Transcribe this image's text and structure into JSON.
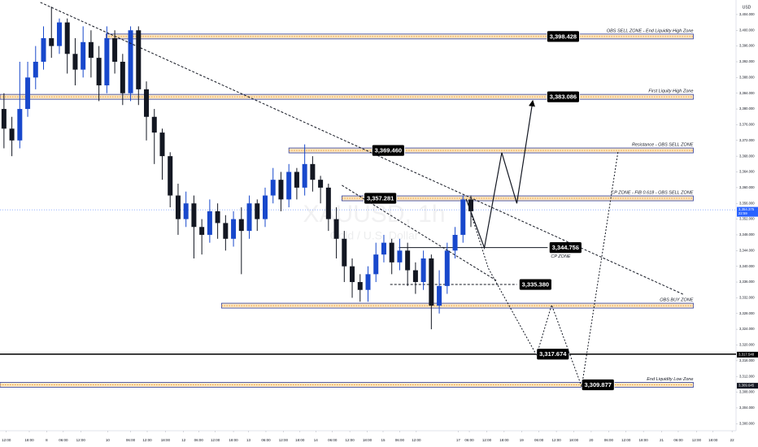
{
  "chart_data": {
    "type": "candlestick",
    "currency": "USD",
    "watermark": {
      "symbol": "XAUUSD, 1h",
      "description": "Gold / U.S. Dollar"
    },
    "up_color": "#1848cc",
    "down_color": "#131722",
    "grid": false,
    "xlim": [
      0,
      93
    ],
    "ylim": [
      3298.2,
      3407.7
    ],
    "yticks": [
      {
        "value": 3300,
        "label": "3,300.000"
      },
      {
        "value": 3304,
        "label": "3,304.000"
      },
      {
        "value": 3308,
        "label": "3,308.000"
      },
      {
        "value": 3312,
        "label": "3,312.000"
      },
      {
        "value": 3316,
        "label": "3,316.000"
      },
      {
        "value": 3320,
        "label": "3,320.000"
      },
      {
        "value": 3324,
        "label": "3,324.000"
      },
      {
        "value": 3328,
        "label": "3,328.000"
      },
      {
        "value": 3332,
        "label": "3,332.000"
      },
      {
        "value": 3336,
        "label": "3,336.000"
      },
      {
        "value": 3340,
        "label": "3,340.000"
      },
      {
        "value": 3344,
        "label": "3,344.000"
      },
      {
        "value": 3348,
        "label": "3,348.000"
      },
      {
        "value": 3352,
        "label": "3,352.000"
      },
      {
        "value": 3356,
        "label": "3,356.000"
      },
      {
        "value": 3360,
        "label": "3,360.000"
      },
      {
        "value": 3364,
        "label": "3,364.000"
      },
      {
        "value": 3368,
        "label": "3,368.000"
      },
      {
        "value": 3372,
        "label": "3,372.000"
      },
      {
        "value": 3376,
        "label": "3,376.000"
      },
      {
        "value": 3380,
        "label": "3,380.000"
      },
      {
        "value": 3384,
        "label": "3,384.000"
      },
      {
        "value": 3388,
        "label": "3,388.000"
      },
      {
        "value": 3392,
        "label": "3,392.000"
      },
      {
        "value": 3396,
        "label": "3,396.000"
      },
      {
        "value": 3400,
        "label": "3,400.000"
      },
      {
        "value": 3404,
        "label": "3,404.000"
      }
    ],
    "xticks": [
      {
        "value": 0.8,
        "label": "12:00"
      },
      {
        "value": 3.7,
        "label": "18:00"
      },
      {
        "value": 5.9,
        "label": "8"
      },
      {
        "value": 8.0,
        "label": "06:00"
      },
      {
        "value": 10.2,
        "label": "12:00"
      },
      {
        "value": 13.6,
        "label": "10"
      },
      {
        "value": 16.5,
        "label": "06:00"
      },
      {
        "value": 18.6,
        "label": "12:00"
      },
      {
        "value": 20.9,
        "label": "18:00"
      },
      {
        "value": 23.2,
        "label": "12"
      },
      {
        "value": 25.1,
        "label": "06:00"
      },
      {
        "value": 27.2,
        "label": "12:00"
      },
      {
        "value": 29.5,
        "label": "18:00"
      },
      {
        "value": 31.4,
        "label": "13"
      },
      {
        "value": 33.6,
        "label": "06:00"
      },
      {
        "value": 35.8,
        "label": "12:00"
      },
      {
        "value": 37.9,
        "label": "18:00"
      },
      {
        "value": 39.9,
        "label": "14"
      },
      {
        "value": 42.0,
        "label": "06:00"
      },
      {
        "value": 44.2,
        "label": "12:00"
      },
      {
        "value": 46.4,
        "label": "18:00"
      },
      {
        "value": 48.4,
        "label": "15"
      },
      {
        "value": 50.5,
        "label": "06:00"
      },
      {
        "value": 52.6,
        "label": "12:00"
      },
      {
        "value": 57.9,
        "label": "17"
      },
      {
        "value": 59.3,
        "label": "06:00"
      },
      {
        "value": 61.5,
        "label": "12:00"
      },
      {
        "value": 63.7,
        "label": "18:00"
      },
      {
        "value": 65.9,
        "label": "19"
      },
      {
        "value": 68.1,
        "label": "06:00"
      },
      {
        "value": 70.3,
        "label": "12:00"
      },
      {
        "value": 72.5,
        "label": "18:00"
      },
      {
        "value": 74.7,
        "label": "20"
      },
      {
        "value": 76.9,
        "label": "06:00"
      },
      {
        "value": 79.1,
        "label": "12:00"
      },
      {
        "value": 81.3,
        "label": "18:00"
      },
      {
        "value": 83.6,
        "label": "21"
      },
      {
        "value": 85.7,
        "label": "06:00"
      },
      {
        "value": 88.0,
        "label": "12:00"
      },
      {
        "value": 90.1,
        "label": "18:00"
      },
      {
        "value": 92.5,
        "label": "22"
      }
    ],
    "open": [
      3380,
      3375,
      3372,
      3380,
      3388,
      3392,
      3398,
      3396,
      3402,
      3394,
      3390,
      3397,
      3393,
      3386,
      3398,
      3392,
      3384,
      3400,
      3385,
      3378,
      3374,
      3368,
      3358,
      3352,
      3356,
      3350,
      3348,
      3354,
      3351,
      3347,
      3352,
      3349,
      3356,
      3352,
      3358,
      3362,
      3357,
      3364,
      3360,
      3366,
      3362,
      3360,
      3352,
      3347,
      3340,
      3336,
      3334,
      3338,
      3343,
      3346,
      3341,
      3344,
      3339,
      3336,
      3342,
      3330,
      3335,
      3344,
      3348,
      3357
    ],
    "high": [
      3384,
      3378,
      3392,
      3392,
      3396,
      3401,
      3406,
      3403,
      3403,
      3398,
      3401,
      3400,
      3396,
      3401,
      3400,
      3394,
      3401,
      3401,
      3387,
      3380,
      3375,
      3369,
      3361,
      3359,
      3358,
      3352,
      3357,
      3356,
      3353,
      3354,
      3355,
      3358,
      3357,
      3360,
      3365,
      3364,
      3366,
      3365,
      3371,
      3368,
      3363,
      3361,
      3355,
      3349,
      3342,
      3338,
      3340,
      3346,
      3348,
      3347,
      3347,
      3346,
      3341,
      3344,
      3343,
      3339,
      3346,
      3350,
      3358,
      3358
    ],
    "low": [
      3370,
      3368,
      3370,
      3378,
      3385,
      3390,
      3393,
      3394,
      3389,
      3386,
      3388,
      3388,
      3382,
      3384,
      3389,
      3381,
      3382,
      3381,
      3372,
      3366,
      3362,
      3355,
      3348,
      3350,
      3342,
      3343,
      3346,
      3347,
      3344,
      3345,
      3338,
      3347,
      3349,
      3350,
      3356,
      3354,
      3355,
      3357,
      3358,
      3359,
      3356,
      3349,
      3342,
      3336,
      3332,
      3331,
      3331,
      3336,
      3341,
      3338,
      3339,
      3335,
      3333,
      3334,
      3324,
      3328,
      3333,
      3342,
      3346,
      3350
    ],
    "close": [
      3375,
      3372,
      3380,
      3388,
      3392,
      3398,
      3396,
      3402,
      3394,
      3390,
      3397,
      3393,
      3386,
      3398,
      3392,
      3384,
      3400,
      3385,
      3378,
      3374,
      3368,
      3358,
      3352,
      3356,
      3350,
      3348,
      3354,
      3351,
      3347,
      3352,
      3349,
      3356,
      3352,
      3358,
      3362,
      3357,
      3364,
      3360,
      3366,
      3362,
      3360,
      3352,
      3347,
      3340,
      3336,
      3334,
      3338,
      3343,
      3346,
      3341,
      3344,
      3339,
      3336,
      3342,
      3330,
      3335,
      3344,
      3348,
      3357,
      3354
    ],
    "zones": [
      {
        "style": "band",
        "price": 3398.428,
        "tag": "3,398.428",
        "tag_x": 69.1,
        "x_start": 13.4,
        "x_end": 87.6,
        "label": "OBS SELL ZONE  -  End Liquidity High Zone"
      },
      {
        "style": "band",
        "price": 3383.086,
        "tag": "3,383.086",
        "tag_x": 69.1,
        "x_start": 0,
        "x_end": 87.6,
        "label": "First Liquity High Zone"
      },
      {
        "style": "band",
        "price": 3369.46,
        "tag": "3,369.460",
        "tag_x": 47.0,
        "x_start": 36.5,
        "x_end": 87.6,
        "label": "Resistance - OBS SELL ZONE"
      },
      {
        "style": "band",
        "price": 3357.281,
        "tag": "3,357.281",
        "tag_x": 46.0,
        "x_start": 43.2,
        "x_end": 87.6,
        "label": "CP ZONE - FIB 0.618 - OBS SELL ZONE"
      },
      {
        "style": "line",
        "price": 3344.758,
        "tag": "3,344.758",
        "tag_x": 69.4,
        "x_start": 50.4,
        "x_end": 69.2,
        "label": "CP ZONE",
        "label_under_tag": true
      },
      {
        "style": "dashed",
        "price": 3335.38,
        "tag": "3,335.380",
        "tag_x": 65.6,
        "x_start": 49.3,
        "x_end": 65.3
      },
      {
        "style": "band",
        "price": 3330.0,
        "x_start": 28.0,
        "x_end": 87.6,
        "label": "OBS BUY ZONE"
      },
      {
        "style": "solid",
        "price": 3317.674,
        "tag": "3,317.674",
        "tag_x": 67.8,
        "x_start": 0,
        "x_end": 93
      },
      {
        "style": "band",
        "price": 3309.877,
        "tag": "3,309.877",
        "tag_x": 73.5,
        "x_start": 0,
        "x_end": 87.6,
        "label": "End Liquidity Low Zone"
      }
    ],
    "scale_tags": [
      {
        "value": 3354.375,
        "label": "3,354.375",
        "sub": "22:59",
        "color": "#2962ff"
      },
      {
        "value": 3317.548,
        "label": "3,317.548",
        "color": "#000000"
      },
      {
        "value": 3309.645,
        "label": "3,309.645",
        "color": "#131722"
      }
    ],
    "drawings": [
      {
        "style": "dashed",
        "x": [
          5.1,
          86.3
        ],
        "y": [
          3407.1,
          3332.9
        ]
      },
      {
        "style": "dashed",
        "x": [
          43.2,
          62.7
        ],
        "y": [
          3360.6,
          3336.4
        ]
      },
      {
        "style": "arrow",
        "x": [
          58.9,
          61.2,
          63.4,
          65.3,
          67.3
        ],
        "y": [
          3357.1,
          3344.7,
          3368.9,
          3356.0,
          3381.9
        ]
      },
      {
        "style": "dotted",
        "x": [
          59.1,
          61.7,
          67.8,
          69.7,
          73.5,
          78.1
        ],
        "y": [
          3356.0,
          3339.5,
          3317.4,
          3330.2,
          3309.4,
          3369.3
        ]
      }
    ]
  }
}
